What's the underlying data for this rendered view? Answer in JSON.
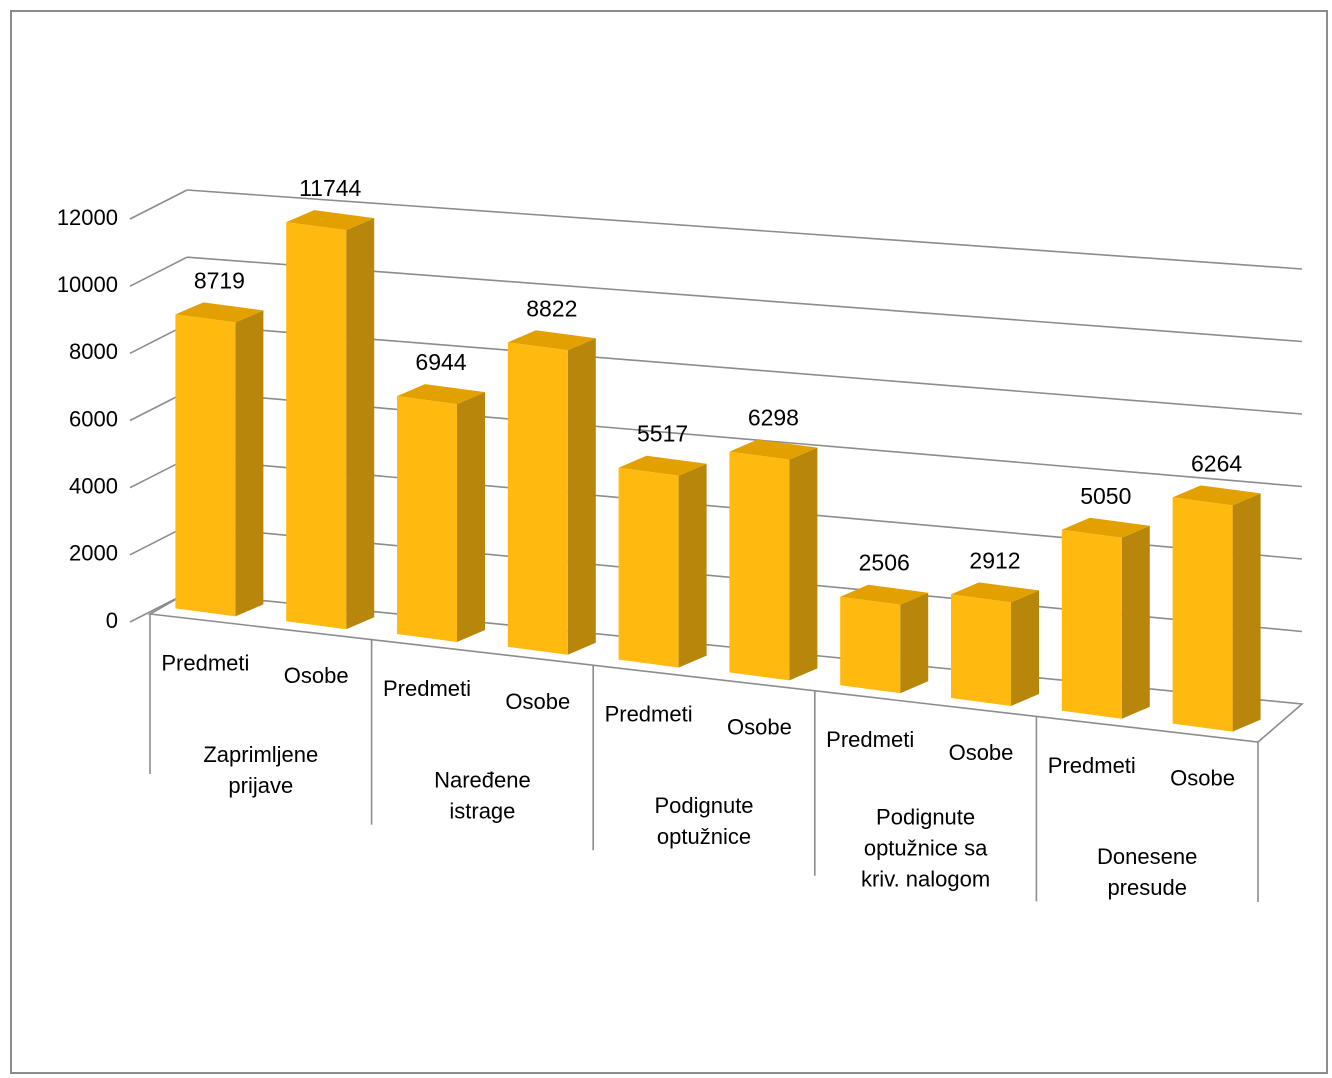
{
  "chart_data": {
    "type": "bar",
    "style": "3d-column",
    "title": "",
    "xlabel": "",
    "ylabel": "",
    "ylim": [
      0,
      12000
    ],
    "yticks": [
      0,
      2000,
      4000,
      6000,
      8000,
      10000,
      12000
    ],
    "grid": true,
    "legend": "none",
    "bar_color": "#FFB90F",
    "groups": [
      {
        "label": "Zaprimljene prijave",
        "lines": [
          "Zaprimljene",
          "prijave"
        ],
        "bars": [
          {
            "label": "Predmeti",
            "value": 8719
          },
          {
            "label": "Osobe",
            "value": 11744
          }
        ]
      },
      {
        "label": "Naređene istrage",
        "lines": [
          "Naređene",
          "istrage"
        ],
        "bars": [
          {
            "label": "Predmeti",
            "value": 6944
          },
          {
            "label": "Osobe",
            "value": 8822
          }
        ]
      },
      {
        "label": "Podignute optužnice",
        "lines": [
          "Podignute",
          "optužnice"
        ],
        "bars": [
          {
            "label": "Predmeti",
            "value": 5517
          },
          {
            "label": "Osobe",
            "value": 6298
          }
        ]
      },
      {
        "label": "Podignute optužnice sa kriv. nalogom",
        "lines": [
          "Podignute",
          "optužnice sa",
          "kriv. nalogom"
        ],
        "bars": [
          {
            "label": "Predmeti",
            "value": 2506
          },
          {
            "label": "Osobe",
            "value": 2912
          }
        ]
      },
      {
        "label": "Donesene presude",
        "lines": [
          "Donesene",
          "presude"
        ],
        "bars": [
          {
            "label": "Predmeti",
            "value": 5050
          },
          {
            "label": "Osobe",
            "value": 6264
          }
        ]
      }
    ]
  }
}
